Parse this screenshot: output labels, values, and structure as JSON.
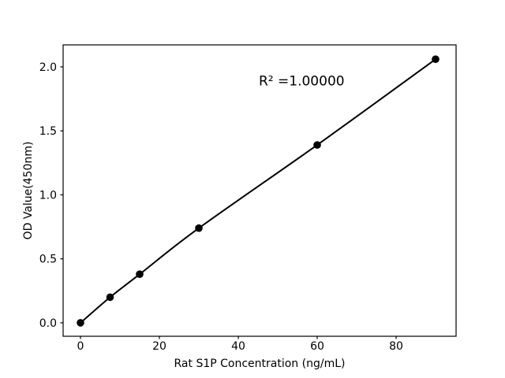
{
  "figure": {
    "background": "#ffffff",
    "foreground": "#000000"
  },
  "chart_data": {
    "type": "line",
    "title": "",
    "xlabel": "Rat S1P Concentration (ng/mL)",
    "ylabel": "OD Value(450nm)",
    "series": [
      {
        "name": "standard-curve",
        "x": [
          0,
          7.5,
          15,
          30,
          60,
          90
        ],
        "y": [
          0.0,
          0.2,
          0.38,
          0.74,
          1.39,
          2.06
        ],
        "color": "#000000",
        "marker": "circle",
        "line_style": "solid"
      }
    ],
    "xlim": [
      -4.4,
      95.2
    ],
    "ylim": [
      -0.105,
      2.172
    ],
    "xticks": {
      "values": [
        0,
        20,
        40,
        60,
        80
      ],
      "labels": [
        "0",
        "20",
        "40",
        "60",
        "80"
      ]
    },
    "yticks": {
      "values": [
        0,
        0.5,
        1.0,
        1.5,
        2.0
      ],
      "labels": [
        "0.0",
        "0.5",
        "1.0",
        "1.5",
        "2.0"
      ]
    },
    "grid": false,
    "legend": "none",
    "annotations": [
      {
        "text": "R² =1.00000",
        "x": 45.2,
        "y": 1.855,
        "ha": "left"
      }
    ]
  }
}
